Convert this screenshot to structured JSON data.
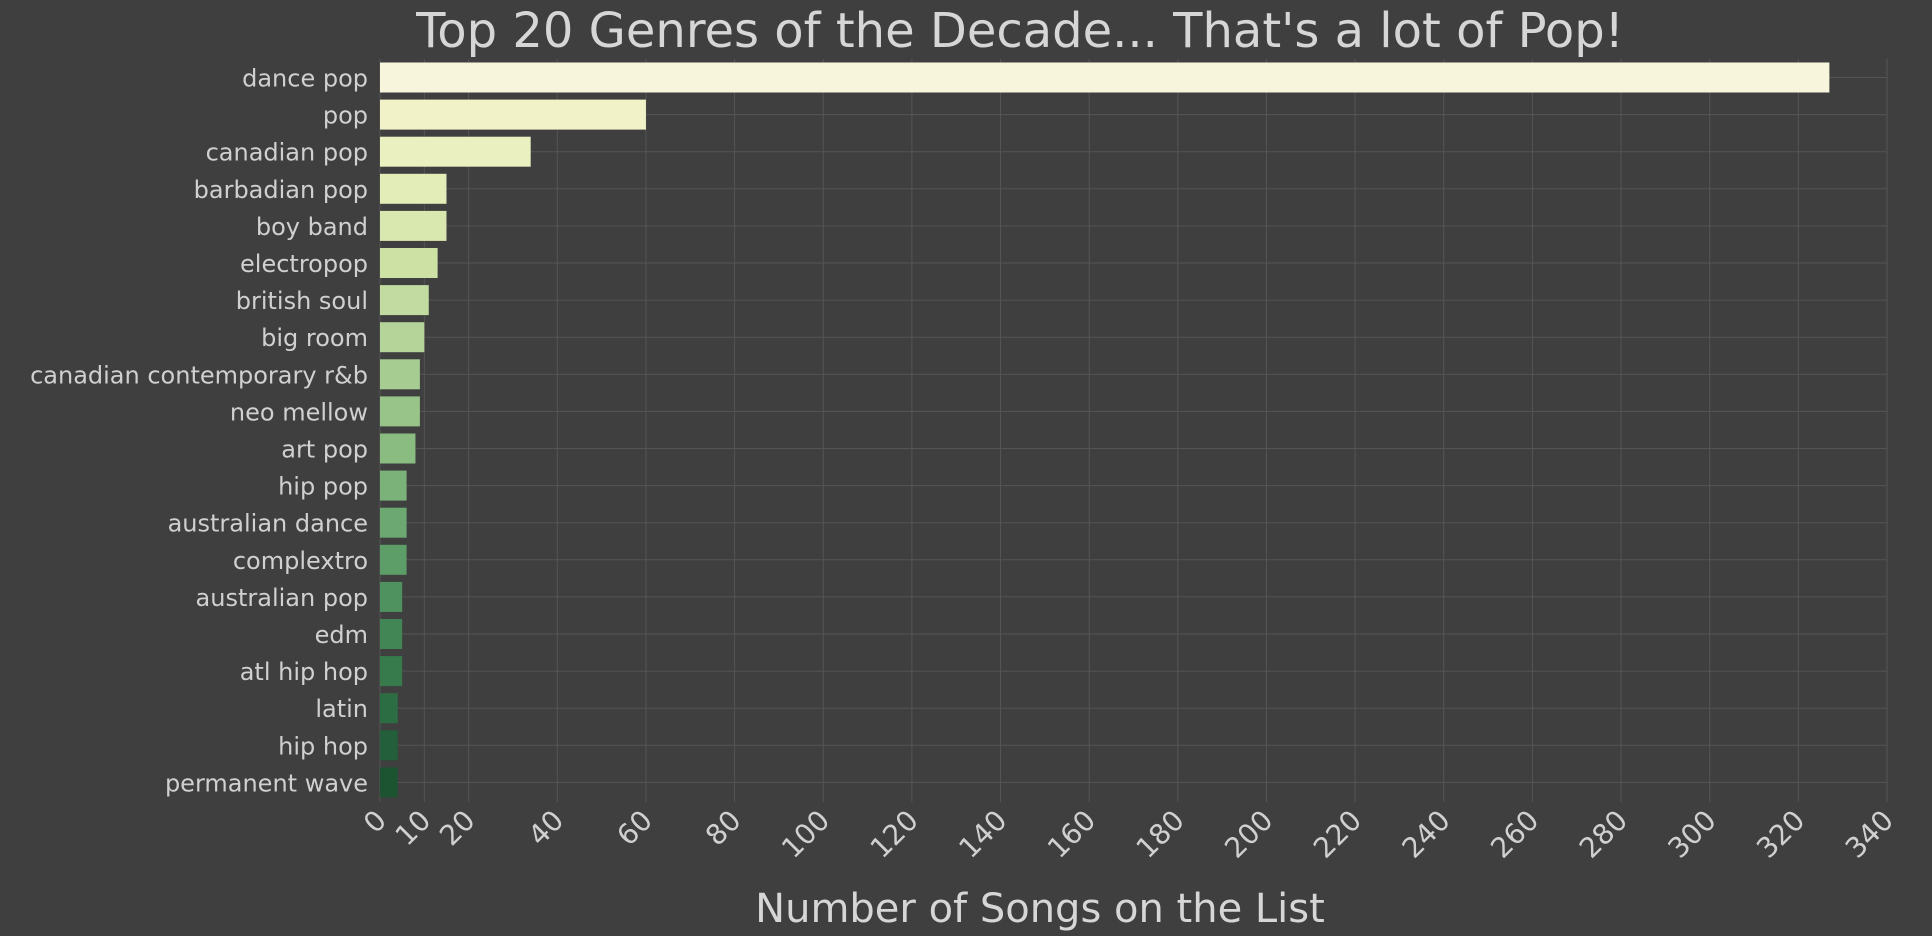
{
  "chart_data": {
    "type": "bar",
    "orientation": "horizontal",
    "title": "Top 20 Genres of the Decade... That's a lot of Pop!",
    "xlabel": "Number of Songs on the List",
    "ylabel": "",
    "xlim": [
      0,
      340
    ],
    "xticks": [
      0,
      10,
      20,
      40,
      60,
      80,
      100,
      120,
      140,
      160,
      180,
      200,
      220,
      240,
      260,
      280,
      300,
      320,
      340
    ],
    "grid": true,
    "categories": [
      "dance pop",
      "pop",
      "canadian pop",
      "barbadian pop",
      "boy band",
      "electropop",
      "british soul",
      "big room",
      "canadian contemporary r&b",
      "neo mellow",
      "art pop",
      "hip pop",
      "australian dance",
      "complextro",
      "australian pop",
      "edm",
      "atl hip hop",
      "latin",
      "hip hop",
      "permanent wave"
    ],
    "values": [
      327,
      60,
      34,
      15,
      15,
      13,
      11,
      10,
      9,
      9,
      8,
      6,
      6,
      6,
      5,
      5,
      5,
      4,
      4,
      4
    ],
    "colors": [
      "#f7f6dc",
      "#f1f2c7",
      "#eaf0c0",
      "#e2edb8",
      "#d9e8ae",
      "#cde1a5",
      "#c2dba0",
      "#b5d499",
      "#a6cc92",
      "#98c48a",
      "#8abc82",
      "#7bb27a",
      "#6ca972",
      "#5d9e68",
      "#50925f",
      "#438656",
      "#377a4c",
      "#2d6d43",
      "#235f3a",
      "#1c5432"
    ],
    "background": "#3f3f3f",
    "text_color": "#d0d0d0",
    "grid_color": "#555555"
  }
}
